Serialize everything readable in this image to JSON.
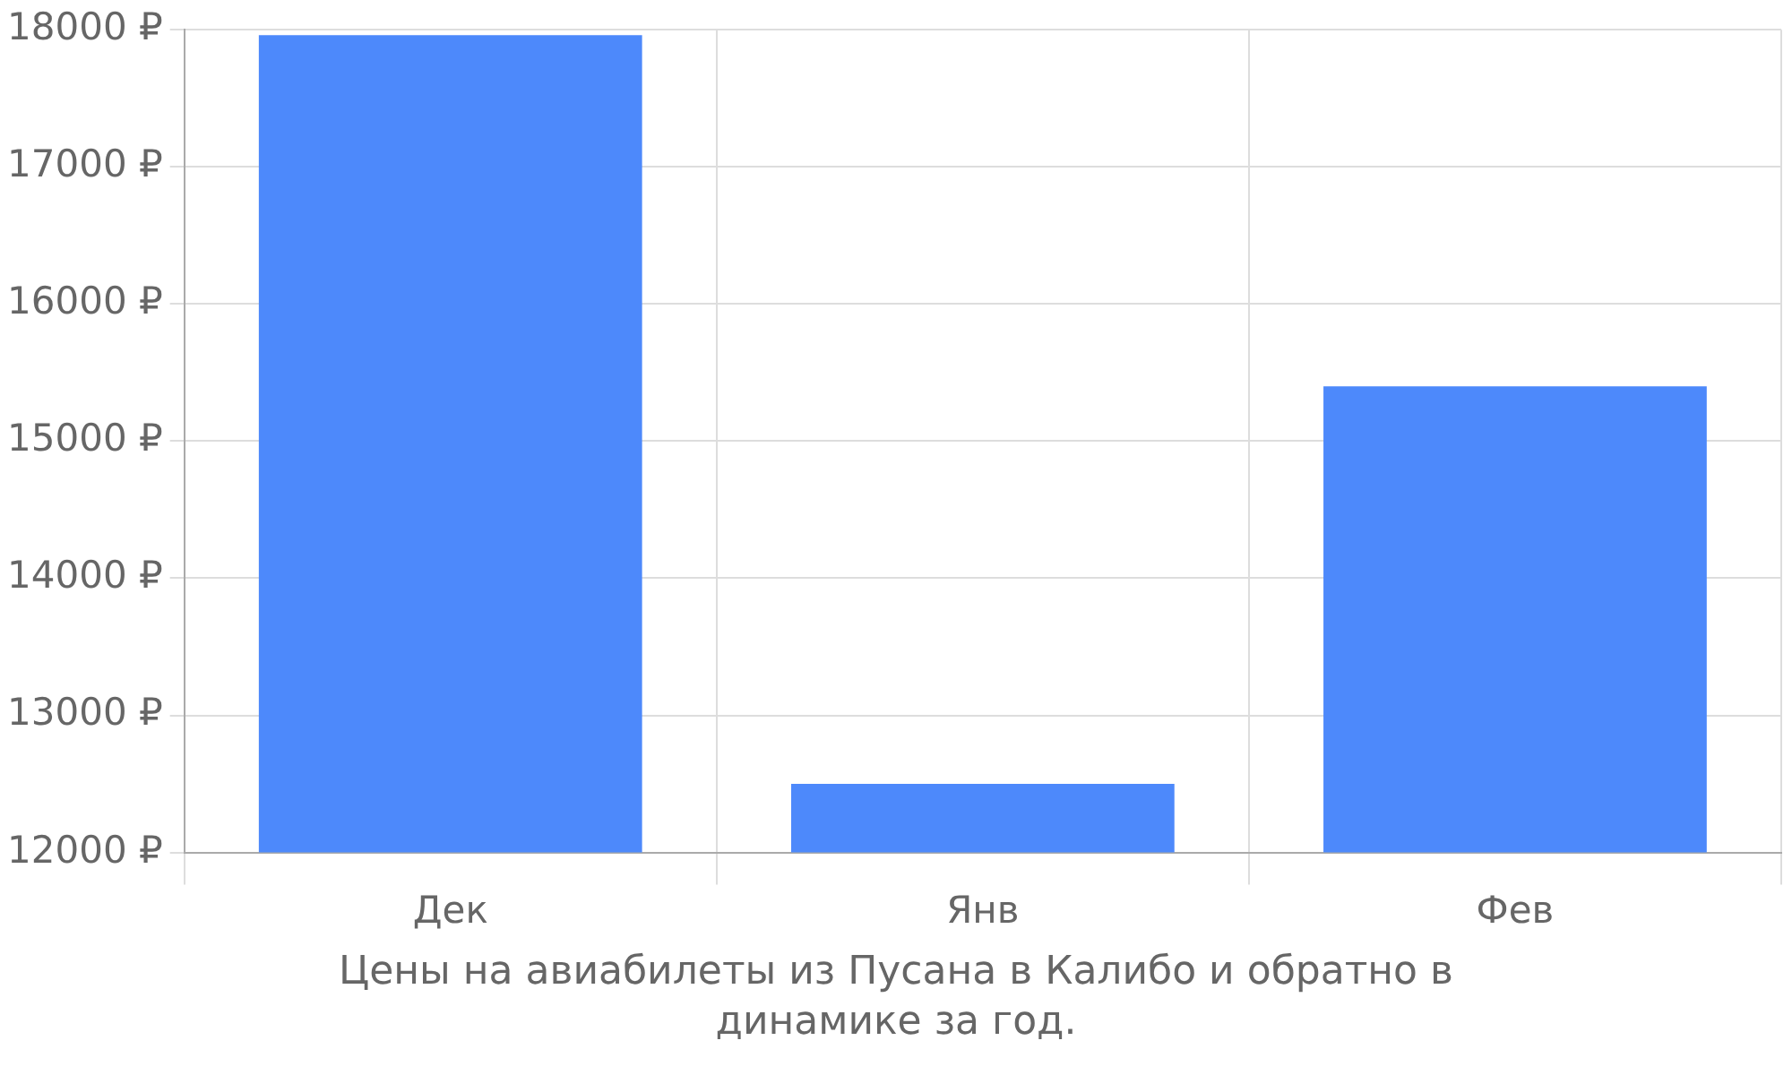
{
  "chart_data": {
    "type": "bar",
    "categories": [
      "Дек",
      "Янв",
      "Фев"
    ],
    "values": [
      17960,
      12500,
      15400
    ],
    "color": "#4d89fb",
    "ylim": [
      12000,
      18000
    ],
    "yticks": [
      {
        "value": 12000,
        "label": "12000 ₽"
      },
      {
        "value": 13000,
        "label": "13000 ₽"
      },
      {
        "value": 14000,
        "label": "14000 ₽"
      },
      {
        "value": 15000,
        "label": "15000 ₽"
      },
      {
        "value": 16000,
        "label": "16000 ₽"
      },
      {
        "value": 17000,
        "label": "17000 ₽"
      },
      {
        "value": 18000,
        "label": "18000 ₽"
      }
    ],
    "grid": true,
    "legend": false,
    "annotations": [
      "Цены на авиабилеты из Пусана в Калибо и обратно в динамике за год."
    ]
  }
}
